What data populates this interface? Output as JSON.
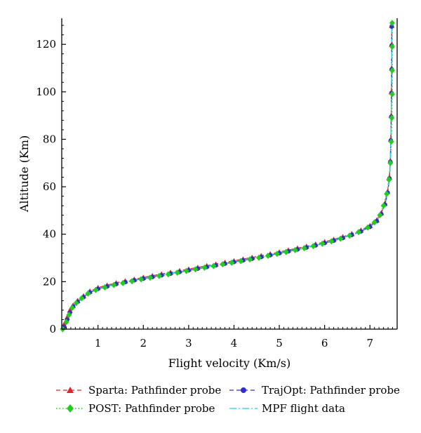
{
  "chart_data": {
    "type": "line",
    "title": "",
    "xlabel": "Flight velocity (Km/s)",
    "ylabel": "Altitude (Km)",
    "xlim": [
      0.2,
      7.6
    ],
    "ylim": [
      0,
      131
    ],
    "xticks": [
      1,
      2,
      3,
      4,
      5,
      6,
      7
    ],
    "yticks": [
      0,
      20,
      40,
      60,
      80,
      100,
      120
    ],
    "grid": false,
    "legend_position": "bottom",
    "series": [
      {
        "name": "Sparta: Pathfinder probe",
        "color": "#e8202a",
        "marker": "triangle",
        "line": "dashed",
        "points": [
          [
            0.25,
            2
          ],
          [
            0.32,
            5
          ],
          [
            0.38,
            8
          ],
          [
            0.45,
            10
          ],
          [
            0.55,
            12
          ],
          [
            0.68,
            14
          ],
          [
            0.82,
            16
          ],
          [
            1.0,
            17.5
          ],
          [
            1.2,
            18.5
          ],
          [
            1.4,
            19.5
          ],
          [
            1.6,
            20.3
          ],
          [
            1.8,
            21
          ],
          [
            2.0,
            21.8
          ],
          [
            2.2,
            22.5
          ],
          [
            2.4,
            23.2
          ],
          [
            2.6,
            23.9
          ],
          [
            2.8,
            24.6
          ],
          [
            3.0,
            25.3
          ],
          [
            3.2,
            26
          ],
          [
            3.4,
            26.7
          ],
          [
            3.6,
            27.4
          ],
          [
            3.8,
            28.1
          ],
          [
            4.0,
            28.8
          ],
          [
            4.2,
            29.5
          ],
          [
            4.4,
            30.2
          ],
          [
            4.6,
            30.9
          ],
          [
            4.8,
            31.7
          ],
          [
            5.0,
            32.5
          ],
          [
            5.2,
            33.3
          ],
          [
            5.4,
            34.1
          ],
          [
            5.6,
            34.9
          ],
          [
            5.8,
            35.8
          ],
          [
            6.0,
            36.8
          ],
          [
            6.2,
            37.8
          ],
          [
            6.4,
            38.9
          ],
          [
            6.6,
            40.2
          ],
          [
            6.8,
            41.7
          ],
          [
            7.0,
            43.6
          ],
          [
            7.15,
            46
          ],
          [
            7.25,
            49
          ],
          [
            7.33,
            53
          ],
          [
            7.39,
            58
          ],
          [
            7.43,
            64
          ],
          [
            7.45,
            71
          ],
          [
            7.46,
            80
          ],
          [
            7.47,
            90
          ],
          [
            7.475,
            100
          ],
          [
            7.48,
            110
          ],
          [
            7.48,
            120
          ],
          [
            7.48,
            128
          ]
        ]
      },
      {
        "name": "TrajOpt: Pathfinder probe",
        "color": "#3030c8",
        "marker": "circle",
        "line": "dashed",
        "points": [
          [
            0.25,
            1
          ],
          [
            0.32,
            4
          ],
          [
            0.38,
            7
          ],
          [
            0.45,
            9.5
          ],
          [
            0.55,
            11.5
          ],
          [
            0.68,
            13.5
          ],
          [
            0.82,
            15.5
          ],
          [
            1.0,
            17
          ],
          [
            1.2,
            18
          ],
          [
            1.4,
            19
          ],
          [
            1.6,
            19.8
          ],
          [
            1.8,
            20.6
          ],
          [
            2.0,
            21.3
          ],
          [
            2.2,
            22
          ],
          [
            2.4,
            22.7
          ],
          [
            2.6,
            23.4
          ],
          [
            2.8,
            24.1
          ],
          [
            3.0,
            24.8
          ],
          [
            3.2,
            25.5
          ],
          [
            3.4,
            26.2
          ],
          [
            3.6,
            26.9
          ],
          [
            3.8,
            27.6
          ],
          [
            4.0,
            28.3
          ],
          [
            4.2,
            29
          ],
          [
            4.4,
            29.7
          ],
          [
            4.6,
            30.4
          ],
          [
            4.8,
            31.2
          ],
          [
            5.0,
            32
          ],
          [
            5.2,
            32.8
          ],
          [
            5.4,
            33.6
          ],
          [
            5.6,
            34.4
          ],
          [
            5.8,
            35.3
          ],
          [
            6.0,
            36.3
          ],
          [
            6.2,
            37.3
          ],
          [
            6.4,
            38.4
          ],
          [
            6.6,
            39.7
          ],
          [
            6.8,
            41.2
          ],
          [
            7.0,
            43.1
          ],
          [
            7.15,
            45.5
          ],
          [
            7.25,
            48.5
          ],
          [
            7.33,
            52.5
          ],
          [
            7.39,
            57.5
          ],
          [
            7.43,
            63.5
          ],
          [
            7.45,
            70.5
          ],
          [
            7.46,
            79.5
          ],
          [
            7.47,
            89.5
          ],
          [
            7.475,
            99.5
          ],
          [
            7.48,
            109.5
          ],
          [
            7.48,
            119.5
          ],
          [
            7.48,
            127.5
          ]
        ]
      },
      {
        "name": "POST: Pathfinder probe",
        "color": "#22cc22",
        "marker": "diamond",
        "line": "dotted",
        "points": [
          [
            0.22,
            0
          ],
          [
            0.3,
            3
          ],
          [
            0.36,
            6
          ],
          [
            0.43,
            9
          ],
          [
            0.52,
            11
          ],
          [
            0.64,
            13
          ],
          [
            0.78,
            15
          ],
          [
            0.95,
            16.5
          ],
          [
            1.15,
            17.6
          ],
          [
            1.35,
            18.6
          ],
          [
            1.55,
            19.4
          ],
          [
            1.75,
            20.2
          ],
          [
            1.95,
            21
          ],
          [
            2.15,
            21.7
          ],
          [
            2.35,
            22.4
          ],
          [
            2.55,
            23.1
          ],
          [
            2.75,
            23.8
          ],
          [
            2.95,
            24.5
          ],
          [
            3.15,
            25.2
          ],
          [
            3.35,
            25.9
          ],
          [
            3.55,
            26.6
          ],
          [
            3.75,
            27.3
          ],
          [
            3.95,
            28
          ],
          [
            4.15,
            28.7
          ],
          [
            4.35,
            29.4
          ],
          [
            4.55,
            30.1
          ],
          [
            4.75,
            30.9
          ],
          [
            4.95,
            31.7
          ],
          [
            5.15,
            32.5
          ],
          [
            5.35,
            33.3
          ],
          [
            5.55,
            34.1
          ],
          [
            5.75,
            35
          ],
          [
            5.95,
            36
          ],
          [
            6.15,
            37
          ],
          [
            6.35,
            38.1
          ],
          [
            6.55,
            39.4
          ],
          [
            6.75,
            40.9
          ],
          [
            6.95,
            42.8
          ],
          [
            7.1,
            45
          ],
          [
            7.22,
            48
          ],
          [
            7.3,
            52
          ],
          [
            7.37,
            57
          ],
          [
            7.42,
            63
          ],
          [
            7.45,
            70
          ],
          [
            7.47,
            79
          ],
          [
            7.48,
            89
          ],
          [
            7.49,
            99
          ],
          [
            7.49,
            109
          ],
          [
            7.49,
            119
          ],
          [
            7.49,
            129
          ]
        ]
      },
      {
        "name": "MPF flight data",
        "color": "#22d4e0",
        "marker": "none",
        "line": "dashdot",
        "points": [
          [
            0.25,
            1.5
          ],
          [
            0.32,
            4.5
          ],
          [
            0.38,
            7.5
          ],
          [
            0.45,
            9.8
          ],
          [
            0.55,
            11.8
          ],
          [
            0.68,
            13.8
          ],
          [
            0.82,
            15.8
          ],
          [
            1.0,
            17.2
          ],
          [
            1.2,
            18.2
          ],
          [
            1.4,
            19.2
          ],
          [
            1.6,
            20
          ],
          [
            1.8,
            20.8
          ],
          [
            2.0,
            21.5
          ],
          [
            2.2,
            22.2
          ],
          [
            2.4,
            22.9
          ],
          [
            2.6,
            23.6
          ],
          [
            2.8,
            24.3
          ],
          [
            3.0,
            25
          ],
          [
            3.2,
            25.7
          ],
          [
            3.4,
            26.4
          ],
          [
            3.6,
            27.1
          ],
          [
            3.8,
            27.8
          ],
          [
            4.0,
            28.5
          ],
          [
            4.2,
            29.2
          ],
          [
            4.4,
            29.9
          ],
          [
            4.6,
            30.6
          ],
          [
            4.8,
            31.4
          ],
          [
            5.0,
            32.2
          ],
          [
            5.2,
            33
          ],
          [
            5.4,
            33.8
          ],
          [
            5.6,
            34.6
          ],
          [
            5.8,
            35.5
          ],
          [
            6.0,
            36.5
          ],
          [
            6.2,
            37.5
          ],
          [
            6.4,
            38.6
          ],
          [
            6.6,
            39.9
          ],
          [
            6.8,
            41.4
          ],
          [
            7.0,
            43.3
          ],
          [
            7.15,
            45.7
          ],
          [
            7.25,
            48.7
          ],
          [
            7.33,
            52.7
          ],
          [
            7.39,
            57.7
          ],
          [
            7.43,
            63.7
          ],
          [
            7.45,
            70.7
          ],
          [
            7.46,
            79.7
          ],
          [
            7.47,
            89.7
          ],
          [
            7.475,
            99.7
          ],
          [
            7.48,
            109.7
          ],
          [
            7.48,
            119.7
          ],
          [
            7.48,
            128
          ]
        ]
      }
    ]
  }
}
